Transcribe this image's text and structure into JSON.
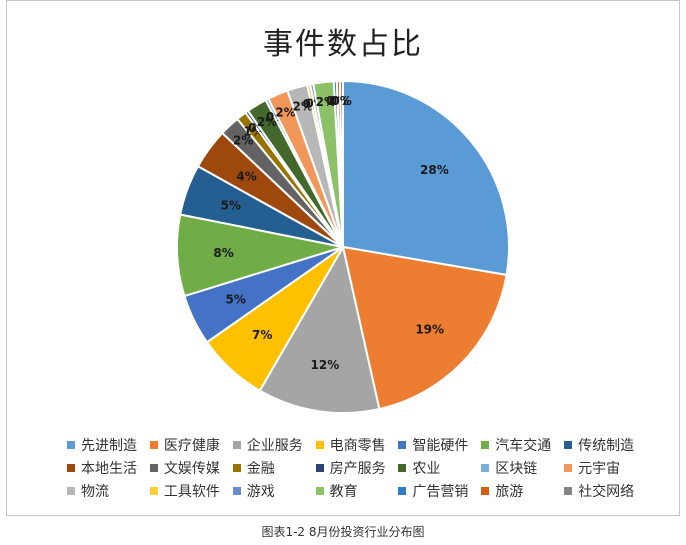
{
  "chart_data": {
    "type": "pie",
    "title": "事件数占比",
    "categories": [
      "先进制造",
      "医疗健康",
      "企业服务",
      "电商零售",
      "智能硬件",
      "汽车交通",
      "传统制造",
      "本地生活",
      "文娱传媒",
      "金融",
      "房产服务",
      "农业",
      "区块链",
      "元宇宙",
      "物流",
      "工具软件",
      "游戏",
      "教育",
      "广告营销",
      "旅游",
      "社交网络"
    ],
    "values": [
      28,
      19,
      12,
      7,
      5,
      8,
      5,
      4,
      2,
      1,
      0.3,
      2,
      0.3,
      2,
      2,
      0.3,
      0.3,
      2,
      0.3,
      0.3,
      0.3
    ],
    "labels": [
      "28%",
      "19%",
      "12%",
      "7%",
      "5%",
      "8%",
      "5%",
      "4%",
      "2%",
      "1%",
      "0%",
      "2%",
      "0%",
      "2%",
      "2%",
      "0%",
      "0%",
      "2%",
      "0%",
      "0%",
      "0%"
    ],
    "colors": [
      "#5B9BD5",
      "#ED7D31",
      "#A5A5A5",
      "#FFC000",
      "#4472C4",
      "#70AD47",
      "#255E91",
      "#9E480E",
      "#636363",
      "#997300",
      "#264478",
      "#43682B",
      "#7CAFDD",
      "#F1975A",
      "#B7B7B7",
      "#FFCD33",
      "#698ED0",
      "#8CC168",
      "#327DC2",
      "#D26012",
      "#848484"
    ],
    "legend_position": "bottom"
  },
  "caption": "图表1-2 8月份投资行业分布图"
}
